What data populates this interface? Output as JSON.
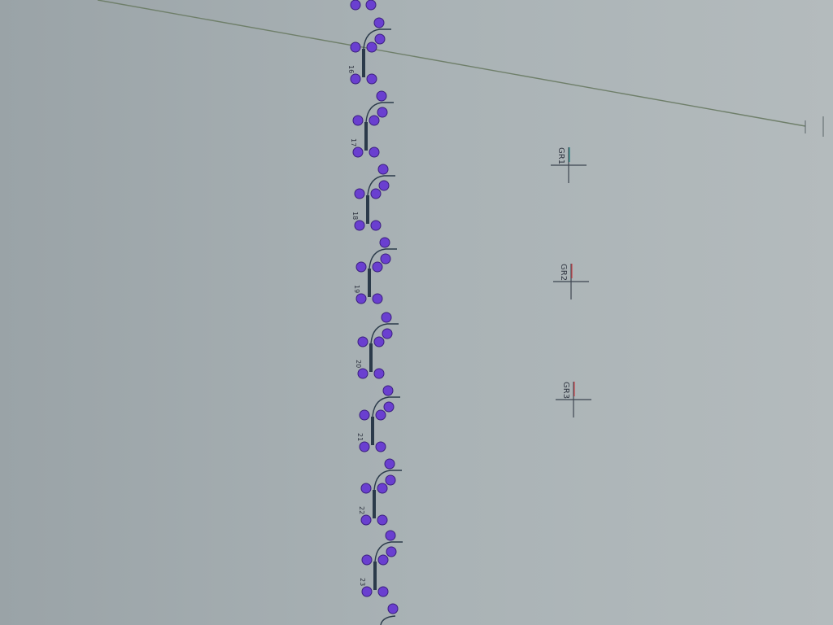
{
  "diagram": {
    "nodes": [
      {
        "label": "16"
      },
      {
        "label": "17"
      },
      {
        "label": "18"
      },
      {
        "label": "19"
      },
      {
        "label": "20"
      },
      {
        "label": "21"
      },
      {
        "label": "22"
      },
      {
        "label": "23"
      }
    ],
    "markers": [
      {
        "label": "GR1",
        "tick_color": "#2a8c8a"
      },
      {
        "label": "GR2",
        "tick_color": "#d0484c"
      },
      {
        "label": "GR3",
        "tick_color": "#d0484c"
      }
    ],
    "colors": {
      "node_fill": "#6a3fd0",
      "node_stroke": "#3b1f7e",
      "stem": "#2b3a4a",
      "line": "#6f7f6a",
      "background": "#a7b0b3",
      "text": "#2f3440"
    }
  }
}
